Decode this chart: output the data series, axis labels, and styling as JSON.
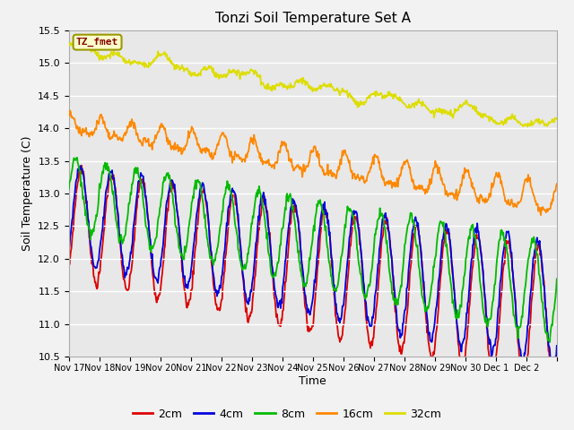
{
  "title": "Tonzi Soil Temperature Set A",
  "xlabel": "Time",
  "ylabel": "Soil Temperature (C)",
  "annotation": "TZ_fmet",
  "annotation_bg": "#ffffcc",
  "annotation_border": "#999900",
  "annotation_text_color": "#880000",
  "ylim": [
    10.5,
    15.5
  ],
  "colors": {
    "2cm": "#dd0000",
    "4cm": "#0000dd",
    "8cm": "#00bb00",
    "16cm": "#ff8800",
    "32cm": "#dddd00"
  },
  "legend_labels": [
    "2cm",
    "4cm",
    "8cm",
    "16cm",
    "32cm"
  ],
  "bg_color": "#e8e8e8",
  "fig_bg": "#f2f2f2",
  "x_tick_labels": [
    "Nov 17",
    "Nov 18",
    "Nov 19",
    "Nov 20",
    "Nov 21",
    "Nov 22",
    "Nov 23",
    "Nov 24",
    "Nov 25",
    "Nov 26",
    "Nov 27",
    "Nov 28",
    "Nov 29",
    "Nov 30",
    "Dec 1",
    "Dec 2"
  ],
  "yticks": [
    10.5,
    11.0,
    11.5,
    12.0,
    12.5,
    13.0,
    13.5,
    14.0,
    14.5,
    15.0,
    15.5
  ]
}
